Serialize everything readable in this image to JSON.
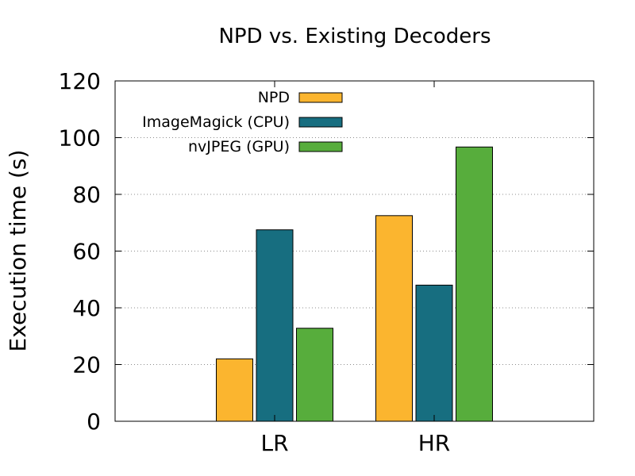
{
  "chart_data": {
    "type": "bar",
    "title": "NPD vs. Existing Decoders",
    "xlabel": "",
    "ylabel": "Execution time (s)",
    "categories": [
      "LR",
      "HR"
    ],
    "series": [
      {
        "name": "NPD",
        "values": [
          22,
          72.5
        ],
        "color": "#fbb52f"
      },
      {
        "name": "ImageMagick (CPU)",
        "values": [
          67.5,
          48
        ],
        "color": "#176e80"
      },
      {
        "name": "nvJPEG (GPU)",
        "values": [
          32.8,
          96.7
        ],
        "color": "#57ad3c"
      }
    ],
    "ylim": [
      0,
      120
    ],
    "yticks": [
      "0",
      "20",
      "40",
      "60",
      "80",
      "100",
      "120"
    ],
    "grid": true,
    "legend": "top-left"
  }
}
